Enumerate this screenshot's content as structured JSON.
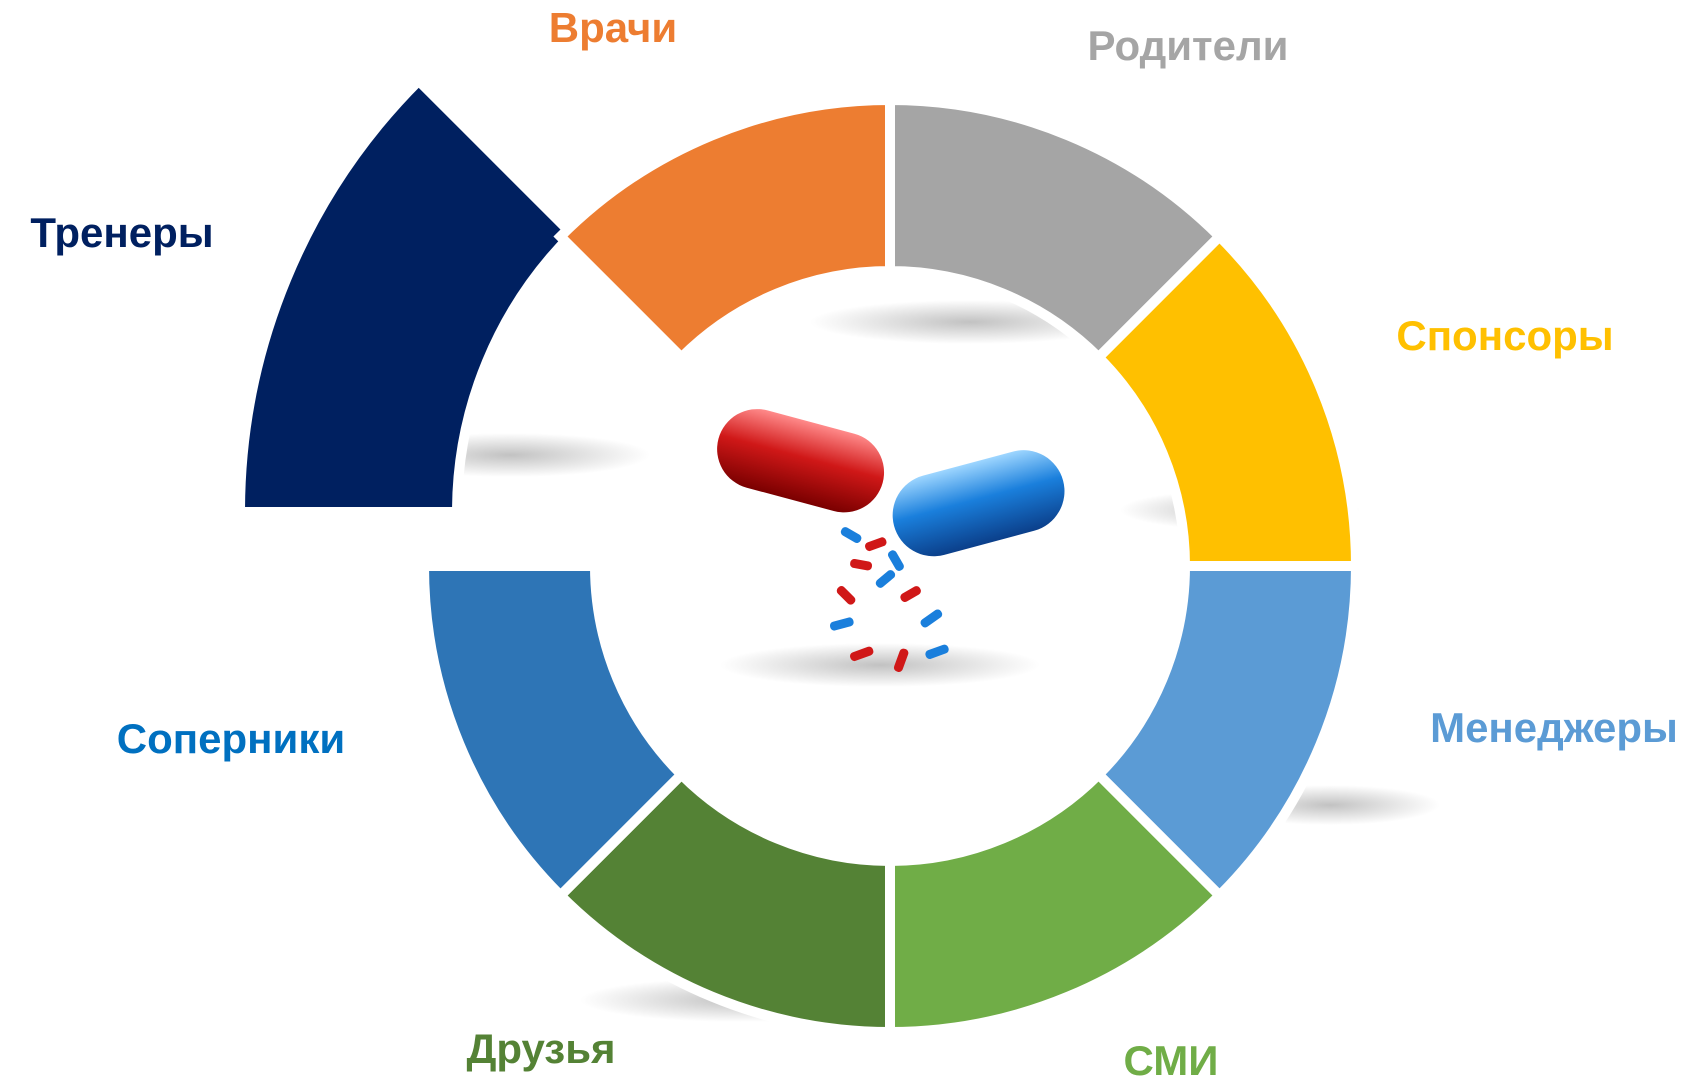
{
  "segments": [
    {
      "label": "Родители",
      "color": "#A5A5A5",
      "label_color": "#A5A5A5"
    },
    {
      "label": "Спонсоры",
      "color": "#FFC000",
      "label_color": "#FFC000"
    },
    {
      "label": "Менеджеры",
      "color": "#5B9BD5",
      "label_color": "#5B9BD5"
    },
    {
      "label": "СМИ",
      "color": "#70AD47",
      "label_color": "#70AD47"
    },
    {
      "label": "Друзья",
      "color": "#548235",
      "label_color": "#548235"
    },
    {
      "label": "Соперники",
      "color": "#2E75B6",
      "label_color": "#0070C0"
    },
    {
      "label": "Тренеры",
      "color": "#002060",
      "label_color": "#002060"
    },
    {
      "label": "Врачи",
      "color": "#ED7D31",
      "label_color": "#ED7D31"
    }
  ]
}
